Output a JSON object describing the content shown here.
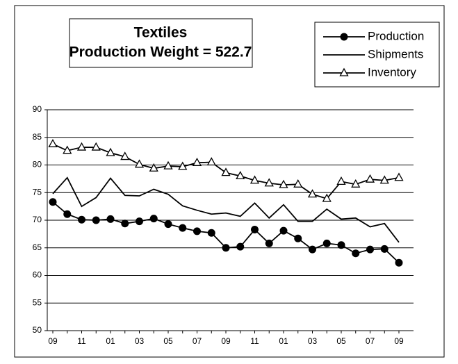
{
  "chart_data": {
    "type": "line",
    "title": "Textiles",
    "subtitle": "Production Weight = 522.7",
    "categories": [
      "09",
      null,
      "11",
      null,
      "01",
      null,
      "03",
      null,
      "05",
      null,
      "07",
      null,
      "09",
      null,
      "11",
      null,
      "01",
      null,
      "03",
      null,
      "05",
      null,
      "07",
      null,
      "09"
    ],
    "series": [
      {
        "name": "Production",
        "color": "#000000",
        "marker": "circle",
        "values": [
          73.3,
          71.1,
          70.1,
          70.0,
          70.2,
          69.4,
          69.8,
          70.3,
          69.3,
          68.6,
          68.0,
          67.7,
          65.0,
          65.2,
          68.3,
          65.8,
          68.1,
          66.7,
          64.7,
          65.8,
          65.5,
          64.0,
          64.7,
          64.8,
          62.3
        ]
      },
      {
        "name": "Shipments",
        "color": "#000000",
        "marker": "none",
        "values": [
          74.8,
          77.7,
          72.5,
          74.1,
          77.6,
          74.5,
          74.4,
          75.6,
          74.7,
          72.6,
          71.8,
          71.1,
          71.3,
          70.7,
          73.1,
          70.4,
          72.8,
          69.8,
          69.8,
          72.0,
          70.2,
          70.4,
          68.8,
          69.4,
          66.0
        ]
      },
      {
        "name": "Inventory",
        "color": "#000000",
        "marker": "triangle",
        "values": [
          83.8,
          82.6,
          83.2,
          83.2,
          82.2,
          81.5,
          80.1,
          79.4,
          79.8,
          79.7,
          80.4,
          80.5,
          78.6,
          78.0,
          77.2,
          76.7,
          76.4,
          76.5,
          74.7,
          73.9,
          77.0,
          76.5,
          77.4,
          77.2,
          77.7
        ]
      }
    ],
    "ylim": [
      50,
      90
    ],
    "yticks": [
      50,
      55,
      60,
      65,
      70,
      75,
      80,
      85,
      90
    ],
    "grid": true,
    "legend": "top-right"
  }
}
